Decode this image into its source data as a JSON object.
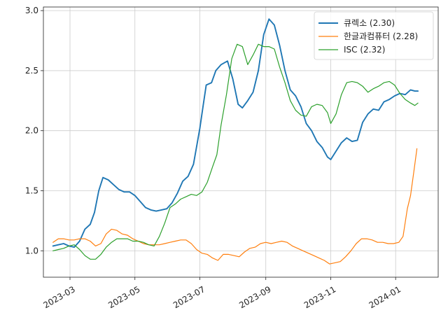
{
  "chart_data": {
    "type": "line",
    "title": "",
    "xlabel": "",
    "ylabel": "",
    "grid": true,
    "legend_position": "top-right",
    "x_range": [
      "2023-02-04",
      "2024-02-10"
    ],
    "ylim": [
      0.78,
      3.03
    ],
    "x_ticks": [
      {
        "date": "2023-03-01",
        "label": "2023-03"
      },
      {
        "date": "2023-05-01",
        "label": "2023-05"
      },
      {
        "date": "2023-07-01",
        "label": "2023-07"
      },
      {
        "date": "2023-09-01",
        "label": "2023-09"
      },
      {
        "date": "2023-11-01",
        "label": "2023-11"
      },
      {
        "date": "2024-01-01",
        "label": "2024-01"
      }
    ],
    "y_ticks": [
      {
        "value": 1.0,
        "label": "1.0"
      },
      {
        "value": 1.5,
        "label": "1.5"
      },
      {
        "value": 2.0,
        "label": "2.0"
      },
      {
        "value": 2.5,
        "label": "2.5"
      },
      {
        "value": 3.0,
        "label": "3.0"
      }
    ],
    "series": [
      {
        "name": "큐렉소 (2.30)",
        "color": "#1f77b4",
        "points": [
          [
            "2023-02-13",
            1.04
          ],
          [
            "2023-02-18",
            1.05
          ],
          [
            "2023-02-23",
            1.06
          ],
          [
            "2023-02-28",
            1.04
          ],
          [
            "2023-03-05",
            1.03
          ],
          [
            "2023-03-10",
            1.08
          ],
          [
            "2023-03-15",
            1.18
          ],
          [
            "2023-03-20",
            1.22
          ],
          [
            "2023-03-24",
            1.32
          ],
          [
            "2023-03-28",
            1.5
          ],
          [
            "2023-04-01",
            1.61
          ],
          [
            "2023-04-06",
            1.59
          ],
          [
            "2023-04-11",
            1.55
          ],
          [
            "2023-04-16",
            1.51
          ],
          [
            "2023-04-21",
            1.49
          ],
          [
            "2023-04-26",
            1.49
          ],
          [
            "2023-05-01",
            1.46
          ],
          [
            "2023-05-06",
            1.41
          ],
          [
            "2023-05-11",
            1.36
          ],
          [
            "2023-05-16",
            1.34
          ],
          [
            "2023-05-21",
            1.33
          ],
          [
            "2023-05-26",
            1.34
          ],
          [
            "2023-05-31",
            1.35
          ],
          [
            "2023-06-05",
            1.4
          ],
          [
            "2023-06-10",
            1.48
          ],
          [
            "2023-06-15",
            1.58
          ],
          [
            "2023-06-20",
            1.62
          ],
          [
            "2023-06-25",
            1.72
          ],
          [
            "2023-07-01",
            2.02
          ],
          [
            "2023-07-04",
            2.2
          ],
          [
            "2023-07-07",
            2.38
          ],
          [
            "2023-07-12",
            2.4
          ],
          [
            "2023-07-16",
            2.5
          ],
          [
            "2023-07-21",
            2.55
          ],
          [
            "2023-07-27",
            2.58
          ],
          [
            "2023-08-01",
            2.43
          ],
          [
            "2023-08-06",
            2.22
          ],
          [
            "2023-08-10",
            2.19
          ],
          [
            "2023-08-15",
            2.25
          ],
          [
            "2023-08-20",
            2.32
          ],
          [
            "2023-08-25",
            2.5
          ],
          [
            "2023-08-30",
            2.8
          ],
          [
            "2023-09-04",
            2.93
          ],
          [
            "2023-09-09",
            2.88
          ],
          [
            "2023-09-14",
            2.71
          ],
          [
            "2023-09-19",
            2.5
          ],
          [
            "2023-09-24",
            2.34
          ],
          [
            "2023-09-29",
            2.29
          ],
          [
            "2023-10-04",
            2.2
          ],
          [
            "2023-10-09",
            2.06
          ],
          [
            "2023-10-14",
            2.0
          ],
          [
            "2023-10-19",
            1.91
          ],
          [
            "2023-10-24",
            1.86
          ],
          [
            "2023-10-29",
            1.78
          ],
          [
            "2023-11-01",
            1.76
          ],
          [
            "2023-11-06",
            1.83
          ],
          [
            "2023-11-11",
            1.9
          ],
          [
            "2023-11-16",
            1.94
          ],
          [
            "2023-11-21",
            1.91
          ],
          [
            "2023-11-26",
            1.92
          ],
          [
            "2023-12-01",
            2.07
          ],
          [
            "2023-12-06",
            2.14
          ],
          [
            "2023-12-11",
            2.18
          ],
          [
            "2023-12-16",
            2.17
          ],
          [
            "2023-12-21",
            2.24
          ],
          [
            "2023-12-26",
            2.26
          ],
          [
            "2023-12-31",
            2.29
          ],
          [
            "2024-01-05",
            2.31
          ],
          [
            "2024-01-10",
            2.3
          ],
          [
            "2024-01-15",
            2.34
          ],
          [
            "2024-01-19",
            2.33
          ],
          [
            "2024-01-22",
            2.33
          ]
        ]
      },
      {
        "name": "한글과컴퓨터 (2.28)",
        "color": "#ff7f0e",
        "points": [
          [
            "2023-02-13",
            1.07
          ],
          [
            "2023-02-18",
            1.1
          ],
          [
            "2023-02-23",
            1.1
          ],
          [
            "2023-02-28",
            1.09
          ],
          [
            "2023-03-05",
            1.09
          ],
          [
            "2023-03-10",
            1.1
          ],
          [
            "2023-03-15",
            1.1
          ],
          [
            "2023-03-20",
            1.08
          ],
          [
            "2023-03-25",
            1.04
          ],
          [
            "2023-03-30",
            1.06
          ],
          [
            "2023-04-04",
            1.14
          ],
          [
            "2023-04-09",
            1.18
          ],
          [
            "2023-04-14",
            1.17
          ],
          [
            "2023-04-19",
            1.14
          ],
          [
            "2023-04-24",
            1.13
          ],
          [
            "2023-04-29",
            1.1
          ],
          [
            "2023-05-04",
            1.08
          ],
          [
            "2023-05-09",
            1.06
          ],
          [
            "2023-05-14",
            1.05
          ],
          [
            "2023-05-19",
            1.05
          ],
          [
            "2023-05-24",
            1.05
          ],
          [
            "2023-05-29",
            1.06
          ],
          [
            "2023-06-03",
            1.07
          ],
          [
            "2023-06-08",
            1.08
          ],
          [
            "2023-06-13",
            1.09
          ],
          [
            "2023-06-18",
            1.09
          ],
          [
            "2023-06-23",
            1.06
          ],
          [
            "2023-06-28",
            1.01
          ],
          [
            "2023-07-03",
            0.98
          ],
          [
            "2023-07-08",
            0.97
          ],
          [
            "2023-07-13",
            0.94
          ],
          [
            "2023-07-18",
            0.92
          ],
          [
            "2023-07-23",
            0.97
          ],
          [
            "2023-07-28",
            0.97
          ],
          [
            "2023-08-02",
            0.96
          ],
          [
            "2023-08-07",
            0.95
          ],
          [
            "2023-08-12",
            0.99
          ],
          [
            "2023-08-17",
            1.02
          ],
          [
            "2023-08-22",
            1.03
          ],
          [
            "2023-08-27",
            1.06
          ],
          [
            "2023-09-01",
            1.07
          ],
          [
            "2023-09-06",
            1.06
          ],
          [
            "2023-09-11",
            1.07
          ],
          [
            "2023-09-16",
            1.08
          ],
          [
            "2023-09-21",
            1.07
          ],
          [
            "2023-09-26",
            1.04
          ],
          [
            "2023-10-01",
            1.02
          ],
          [
            "2023-10-06",
            1.0
          ],
          [
            "2023-10-11",
            0.98
          ],
          [
            "2023-10-16",
            0.96
          ],
          [
            "2023-10-21",
            0.94
          ],
          [
            "2023-10-26",
            0.92
          ],
          [
            "2023-10-31",
            0.89
          ],
          [
            "2023-11-05",
            0.9
          ],
          [
            "2023-11-10",
            0.91
          ],
          [
            "2023-11-15",
            0.95
          ],
          [
            "2023-11-20",
            1.0
          ],
          [
            "2023-11-25",
            1.06
          ],
          [
            "2023-11-30",
            1.1
          ],
          [
            "2023-12-05",
            1.1
          ],
          [
            "2023-12-10",
            1.09
          ],
          [
            "2023-12-15",
            1.07
          ],
          [
            "2023-12-20",
            1.07
          ],
          [
            "2023-12-25",
            1.06
          ],
          [
            "2023-12-30",
            1.06
          ],
          [
            "2024-01-04",
            1.07
          ],
          [
            "2024-01-08",
            1.12
          ],
          [
            "2024-01-12",
            1.35
          ],
          [
            "2024-01-15",
            1.46
          ],
          [
            "2024-01-18",
            1.65
          ],
          [
            "2024-01-21",
            1.85
          ]
        ]
      },
      {
        "name": "ISC (2.32)",
        "color": "#2ca02c",
        "points": [
          [
            "2023-02-13",
            1.0
          ],
          [
            "2023-02-18",
            1.01
          ],
          [
            "2023-02-23",
            1.02
          ],
          [
            "2023-02-28",
            1.04
          ],
          [
            "2023-03-05",
            1.05
          ],
          [
            "2023-03-10",
            1.01
          ],
          [
            "2023-03-15",
            0.96
          ],
          [
            "2023-03-20",
            0.93
          ],
          [
            "2023-03-25",
            0.93
          ],
          [
            "2023-03-30",
            0.97
          ],
          [
            "2023-04-04",
            1.03
          ],
          [
            "2023-04-09",
            1.07
          ],
          [
            "2023-04-14",
            1.1
          ],
          [
            "2023-04-19",
            1.1
          ],
          [
            "2023-04-24",
            1.1
          ],
          [
            "2023-04-29",
            1.08
          ],
          [
            "2023-05-04",
            1.08
          ],
          [
            "2023-05-09",
            1.07
          ],
          [
            "2023-05-14",
            1.05
          ],
          [
            "2023-05-19",
            1.04
          ],
          [
            "2023-05-24",
            1.12
          ],
          [
            "2023-05-29",
            1.23
          ],
          [
            "2023-06-03",
            1.36
          ],
          [
            "2023-06-08",
            1.39
          ],
          [
            "2023-06-13",
            1.43
          ],
          [
            "2023-06-18",
            1.45
          ],
          [
            "2023-06-23",
            1.47
          ],
          [
            "2023-06-28",
            1.46
          ],
          [
            "2023-07-03",
            1.49
          ],
          [
            "2023-07-08",
            1.57
          ],
          [
            "2023-07-13",
            1.7
          ],
          [
            "2023-07-17",
            1.8
          ],
          [
            "2023-07-21",
            2.05
          ],
          [
            "2023-07-26",
            2.3
          ],
          [
            "2023-07-31",
            2.6
          ],
          [
            "2023-08-05",
            2.72
          ],
          [
            "2023-08-10",
            2.7
          ],
          [
            "2023-08-15",
            2.55
          ],
          [
            "2023-08-20",
            2.63
          ],
          [
            "2023-08-25",
            2.72
          ],
          [
            "2023-08-30",
            2.7
          ],
          [
            "2023-09-04",
            2.7
          ],
          [
            "2023-09-09",
            2.68
          ],
          [
            "2023-09-14",
            2.53
          ],
          [
            "2023-09-19",
            2.4
          ],
          [
            "2023-09-24",
            2.25
          ],
          [
            "2023-09-29",
            2.17
          ],
          [
            "2023-10-04",
            2.13
          ],
          [
            "2023-10-09",
            2.12
          ],
          [
            "2023-10-14",
            2.2
          ],
          [
            "2023-10-19",
            2.22
          ],
          [
            "2023-10-24",
            2.21
          ],
          [
            "2023-10-29",
            2.15
          ],
          [
            "2023-11-01",
            2.06
          ],
          [
            "2023-11-06",
            2.14
          ],
          [
            "2023-11-11",
            2.3
          ],
          [
            "2023-11-16",
            2.4
          ],
          [
            "2023-11-21",
            2.41
          ],
          [
            "2023-11-26",
            2.4
          ],
          [
            "2023-12-01",
            2.37
          ],
          [
            "2023-12-06",
            2.32
          ],
          [
            "2023-12-11",
            2.35
          ],
          [
            "2023-12-16",
            2.37
          ],
          [
            "2023-12-21",
            2.4
          ],
          [
            "2023-12-26",
            2.41
          ],
          [
            "2023-12-31",
            2.38
          ],
          [
            "2024-01-05",
            2.31
          ],
          [
            "2024-01-10",
            2.26
          ],
          [
            "2024-01-15",
            2.23
          ],
          [
            "2024-01-19",
            2.21
          ],
          [
            "2024-01-22",
            2.23
          ]
        ]
      }
    ]
  }
}
